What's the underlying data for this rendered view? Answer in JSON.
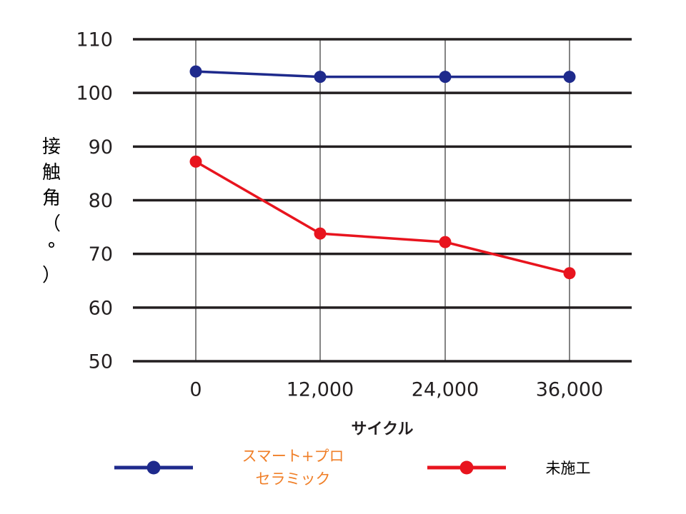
{
  "chart_data": {
    "type": "line",
    "x": [
      "0",
      "12,000",
      "24,000",
      "36,000"
    ],
    "xlabel": "サイクル",
    "ylabel": "接触角（°）",
    "ylabel_chars": [
      "接",
      "触",
      "角",
      "（",
      "°",
      "）"
    ],
    "yticks": [
      "110",
      "100",
      "90",
      "80",
      "70",
      "60",
      "50"
    ],
    "ylim": [
      50,
      110
    ],
    "grid": true,
    "legend_position": "bottom",
    "series": [
      {
        "name_lines": [
          "スマート+プロ",
          "セラミック"
        ],
        "values": [
          104,
          103,
          103,
          103
        ],
        "color": "#1e2a8c",
        "label_color": "#f07f28"
      },
      {
        "name_lines": [
          "未施工"
        ],
        "values": [
          87.2,
          73.8,
          72.2,
          66.4
        ],
        "color": "#e8141e",
        "label_color": "#000000"
      }
    ]
  }
}
